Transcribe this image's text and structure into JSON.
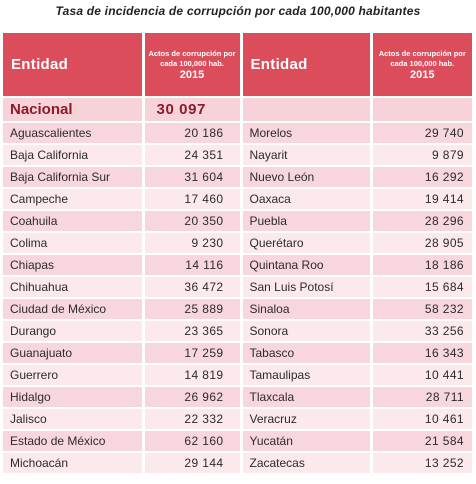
{
  "title": "Tasa de incidencia de corrupción por cada 100,000 habitantes",
  "header": {
    "entidad_label": "Entidad",
    "actos_label": "Actos de corrupción por cada 100,000 hab.",
    "year": "2015"
  },
  "nacional": {
    "label": "Nacional",
    "value": "30 097"
  },
  "left_rows": [
    {
      "entidad": "Aguascalientes",
      "valor": "20 186"
    },
    {
      "entidad": "Baja California",
      "valor": "24 351"
    },
    {
      "entidad": "Baja California Sur",
      "valor": "31 604"
    },
    {
      "entidad": "Campeche",
      "valor": "17 460"
    },
    {
      "entidad": "Coahuila",
      "valor": "20 350"
    },
    {
      "entidad": "Colima",
      "valor": "9 230"
    },
    {
      "entidad": "Chiapas",
      "valor": "14 116"
    },
    {
      "entidad": "Chihuahua",
      "valor": "36 472"
    },
    {
      "entidad": "Ciudad de México",
      "valor": "25 889"
    },
    {
      "entidad": "Durango",
      "valor": "23 365"
    },
    {
      "entidad": "Guanajuato",
      "valor": "17 259"
    },
    {
      "entidad": "Guerrero",
      "valor": "14 819"
    },
    {
      "entidad": "Hidalgo",
      "valor": "26 962"
    },
    {
      "entidad": "Jalisco",
      "valor": "22 332"
    },
    {
      "entidad": "Estado de México",
      "valor": "62 160"
    },
    {
      "entidad": "Michoacán",
      "valor": "29 144"
    }
  ],
  "right_rows": [
    {
      "entidad": "Morelos",
      "valor": "29 740"
    },
    {
      "entidad": "Nayarit",
      "valor": "9 879"
    },
    {
      "entidad": "Nuevo León",
      "valor": "16 292"
    },
    {
      "entidad": "Oaxaca",
      "valor": "19 414"
    },
    {
      "entidad": "Puebla",
      "valor": "28 296"
    },
    {
      "entidad": "Querétaro",
      "valor": "28 905"
    },
    {
      "entidad": "Quintana Roo",
      "valor": "18 186"
    },
    {
      "entidad": "San Luis Potosí",
      "valor": "15 684"
    },
    {
      "entidad": "Sinaloa",
      "valor": "58 232"
    },
    {
      "entidad": "Sonora",
      "valor": "33 256"
    },
    {
      "entidad": "Tabasco",
      "valor": "16 343"
    },
    {
      "entidad": "Tamaulipas",
      "valor": "10 441"
    },
    {
      "entidad": "Tlaxcala",
      "valor": "28 711"
    },
    {
      "entidad": "Veracruz",
      "valor": "10 461"
    },
    {
      "entidad": "Yucatán",
      "valor": "21 584"
    },
    {
      "entidad": "Zacatecas",
      "valor": "13 252"
    }
  ],
  "colors": {
    "header_bg": "#dc4d5b",
    "row_odd": "#f7d7dd",
    "row_even": "#fbe9ec",
    "nacional_text": "#8a1c2c"
  }
}
